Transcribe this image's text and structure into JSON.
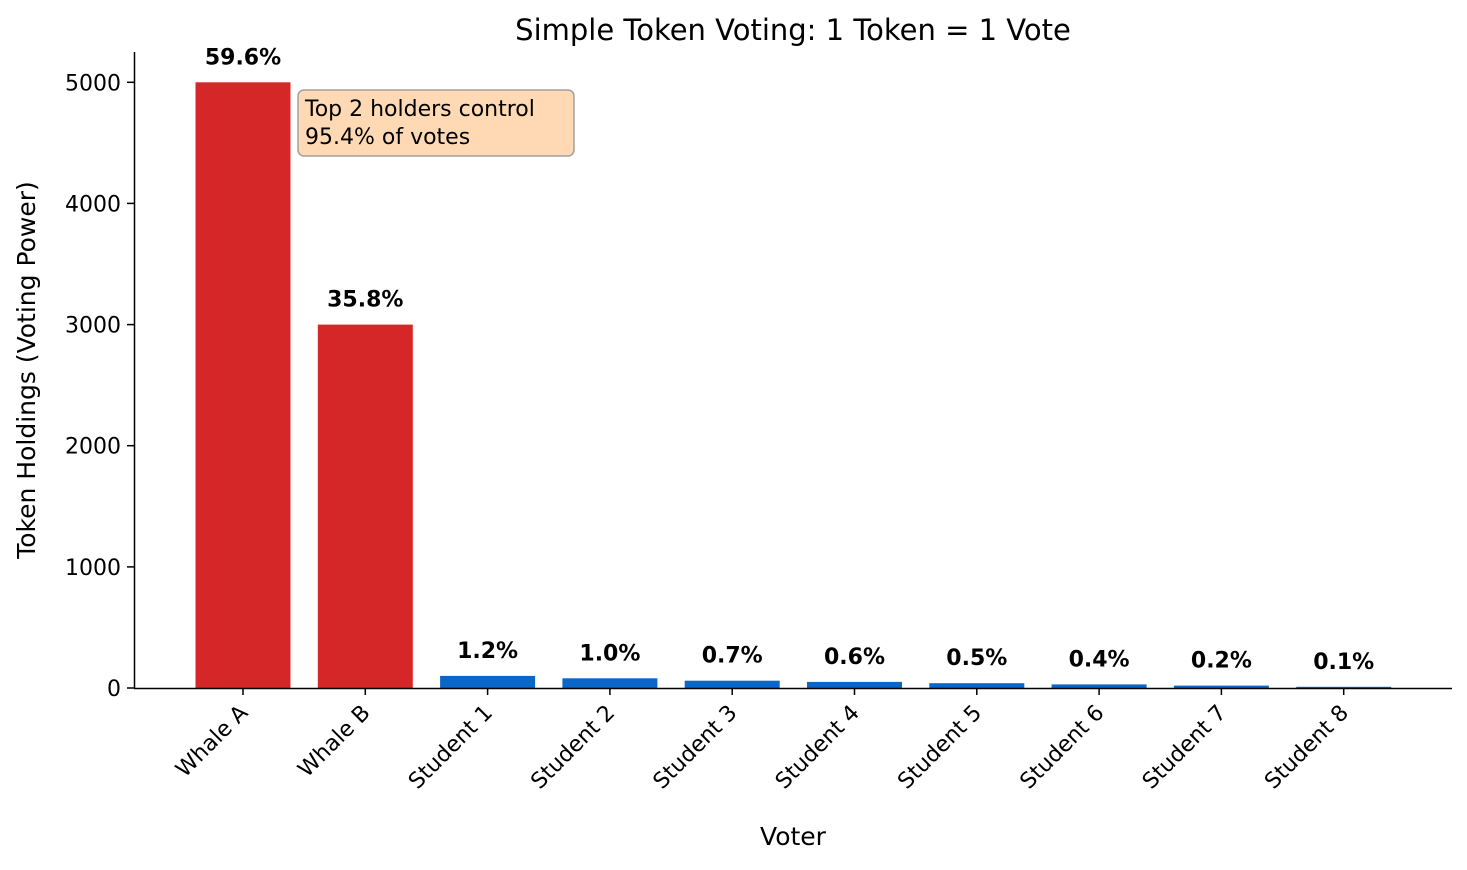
{
  "chart_data": {
    "type": "bar",
    "title": "Simple Token Voting: 1 Token = 1 Vote",
    "xlabel": "Voter",
    "ylabel": "Token Holdings (Voting Power)",
    "categories": [
      "Whale A",
      "Whale B",
      "Student 1",
      "Student 2",
      "Student 3",
      "Student 4",
      "Student 5",
      "Student 6",
      "Student 7",
      "Student 8"
    ],
    "values": [
      5000,
      3000,
      100,
      80,
      60,
      50,
      40,
      30,
      20,
      10
    ],
    "value_labels": [
      "59.6%",
      "35.8%",
      "1.2%",
      "1.0%",
      "0.7%",
      "0.6%",
      "0.5%",
      "0.4%",
      "0.2%",
      "0.1%"
    ],
    "bar_colors": [
      "#d62728",
      "#d62728",
      "#0a66c8",
      "#0a66c8",
      "#0a66c8",
      "#0a66c8",
      "#0a66c8",
      "#0a66c8",
      "#0a66c8",
      "#0a66c8"
    ],
    "ylim": [
      0,
      5250
    ],
    "yticks": [
      0,
      1000,
      2000,
      3000,
      4000,
      5000
    ],
    "grid": false,
    "annotation": {
      "lines": [
        "Top 2 holders control",
        "95.4% of votes"
      ],
      "background": "#ffd9b3",
      "border": "#a0a0a0"
    }
  }
}
